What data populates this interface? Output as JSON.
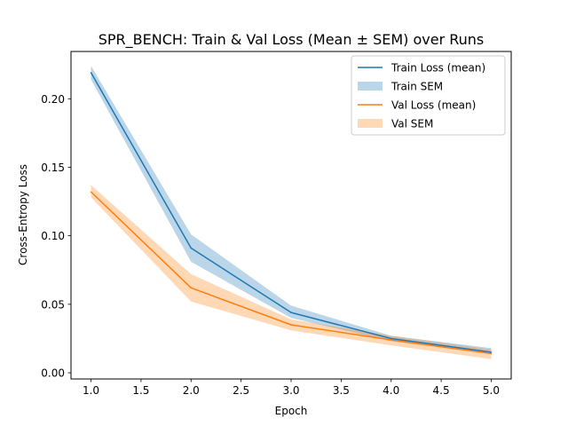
{
  "chart_data": {
    "type": "line",
    "title": "SPR_BENCH: Train & Val Loss (Mean ± SEM) over Runs",
    "xlabel": "Epoch",
    "ylabel": "Cross-Entropy Loss",
    "xlim": [
      0.8,
      5.2
    ],
    "ylim": [
      -0.0045,
      0.2345
    ],
    "x_ticks": [
      1.0,
      1.5,
      2.0,
      2.5,
      3.0,
      3.5,
      4.0,
      4.5,
      5.0
    ],
    "x_tick_labels": [
      "1.0",
      "1.5",
      "2.0",
      "2.5",
      "3.0",
      "3.5",
      "4.0",
      "4.5",
      "5.0"
    ],
    "y_ticks": [
      0.0,
      0.05,
      0.1,
      0.15,
      0.2
    ],
    "y_tick_labels": [
      "0.00",
      "0.05",
      "0.10",
      "0.15",
      "0.20"
    ],
    "grid": false,
    "legend_position": "top-right",
    "x": [
      1,
      2,
      3,
      4,
      5
    ],
    "series": [
      {
        "name": "Train Loss (mean)",
        "kind": "line",
        "color": "#1f77b4",
        "values": [
          0.219,
          0.091,
          0.044,
          0.025,
          0.015
        ]
      },
      {
        "name": "Val Loss (mean)",
        "kind": "line",
        "color": "#ff7f0e",
        "values": [
          0.132,
          0.062,
          0.035,
          0.024,
          0.014
        ]
      }
    ],
    "bands": [
      {
        "name": "Train SEM",
        "color": "#1f77b4",
        "opacity": 0.3,
        "lower": [
          0.214,
          0.081,
          0.04,
          0.023,
          0.014
        ],
        "upper": [
          0.224,
          0.101,
          0.049,
          0.027,
          0.018
        ]
      },
      {
        "name": "Val SEM",
        "color": "#ff7f0e",
        "opacity": 0.3,
        "lower": [
          0.128,
          0.052,
          0.031,
          0.02,
          0.01
        ],
        "upper": [
          0.137,
          0.072,
          0.039,
          0.027,
          0.017
        ]
      }
    ],
    "legend": [
      {
        "label": "Train Loss (mean)",
        "kind": "line",
        "color": "#1f77b4"
      },
      {
        "label": "Train SEM",
        "kind": "patch",
        "color": "#1f77b4"
      },
      {
        "label": "Val Loss (mean)",
        "kind": "line",
        "color": "#ff7f0e"
      },
      {
        "label": "Val SEM",
        "kind": "patch",
        "color": "#ff7f0e"
      }
    ]
  }
}
